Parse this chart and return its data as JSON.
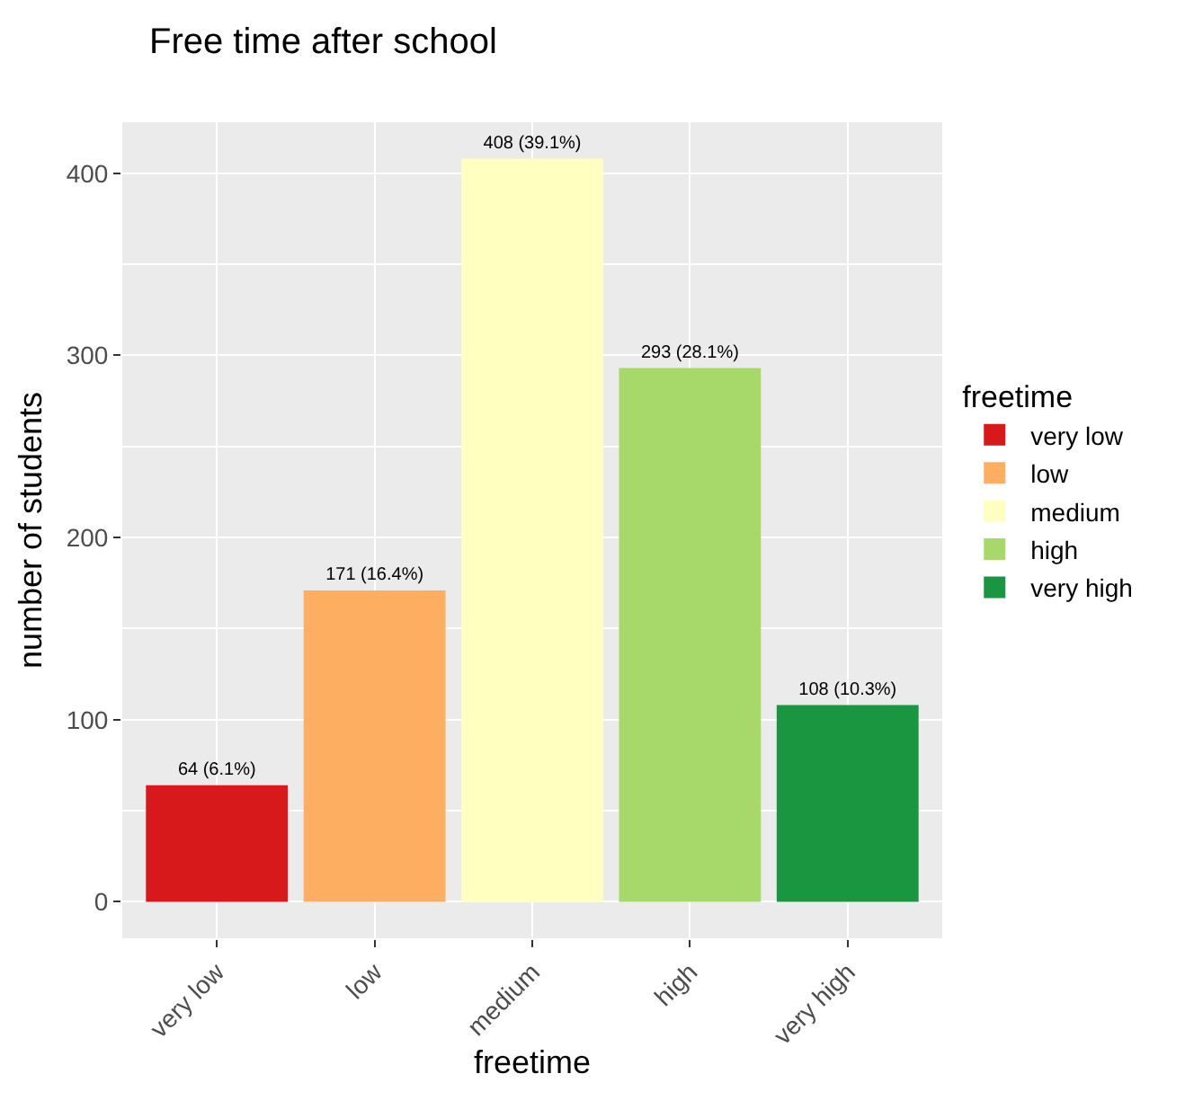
{
  "chart_data": {
    "type": "bar",
    "title": "Free time after school",
    "xlabel": "freetime",
    "ylabel": "number of students",
    "legend_title": "freetime",
    "categories": [
      "very low",
      "low",
      "medium",
      "high",
      "very high"
    ],
    "series": [
      {
        "name": "very low",
        "color": "#d7191c",
        "values": [
          64,
          null,
          null,
          null,
          null
        ],
        "value_labels": [
          "64 (6.1%)",
          null,
          null,
          null,
          null
        ]
      },
      {
        "name": "low",
        "color": "#fdae61",
        "values": [
          null,
          171,
          null,
          null,
          null
        ],
        "value_labels": [
          null,
          "171 (16.4%)",
          null,
          null,
          null
        ]
      },
      {
        "name": "medium",
        "color": "#ffffbf",
        "values": [
          null,
          null,
          408,
          null,
          null
        ],
        "value_labels": [
          null,
          null,
          "408 (39.1%)",
          null,
          null
        ]
      },
      {
        "name": "high",
        "color": "#a6d96a",
        "values": [
          null,
          null,
          null,
          293,
          null
        ],
        "value_labels": [
          null,
          null,
          null,
          "293 (28.1%)",
          null
        ]
      },
      {
        "name": "very high",
        "color": "#1a9641",
        "values": [
          null,
          null,
          null,
          null,
          108
        ],
        "value_labels": [
          null,
          null,
          null,
          null,
          "108 (10.3%)"
        ]
      }
    ],
    "ylim": [
      -20,
      428
    ],
    "yticks": [
      0,
      100,
      200,
      300,
      400
    ],
    "grid": true,
    "legend": "right"
  }
}
